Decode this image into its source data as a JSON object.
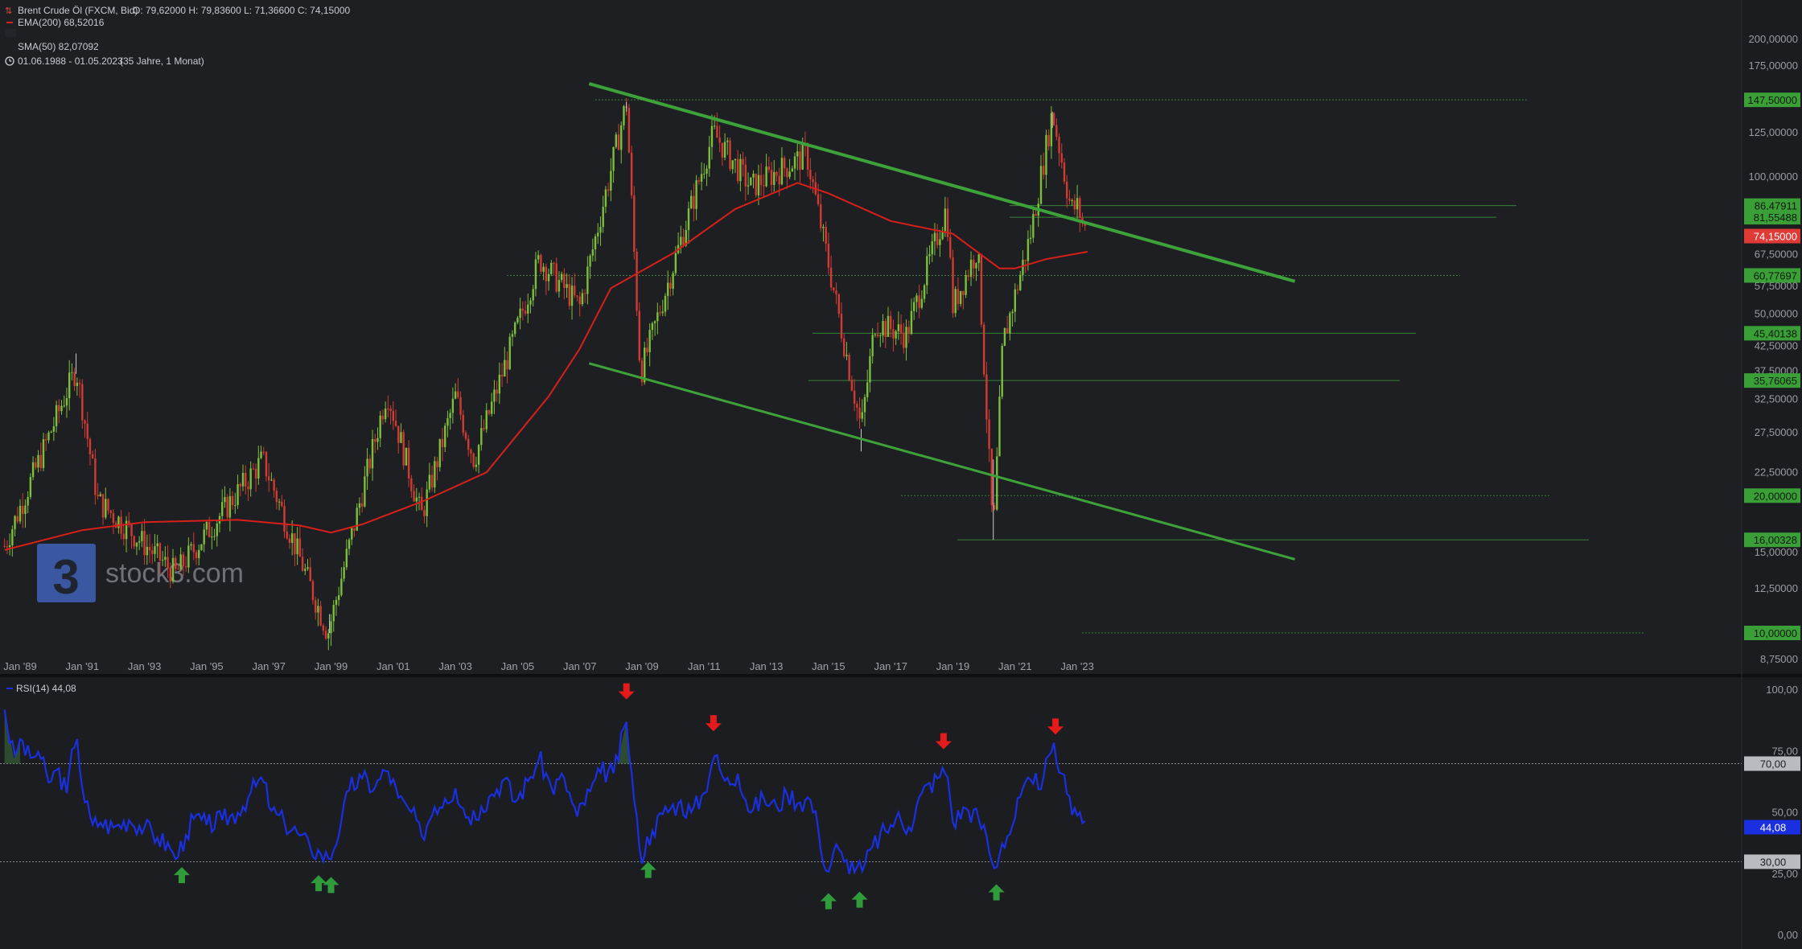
{
  "header": {
    "instrument": "Brent Crude Öl (FXCM, Bid)",
    "ohlc": "O: 79,62000  H: 79,83600  L: 71,36600  C: 74,15000",
    "ema_legend": "EMA(200)  68,52016",
    "hidden_legend": "SMA(50)  82,07092",
    "range": "01.06.1988 - 01.05.2023",
    "range_info": "(35 Jahre, 1 Monat)"
  },
  "logo": {
    "text": "stock3.com"
  },
  "colors": {
    "background": "#1e1f23",
    "panel_bg": "#1b1c20",
    "axis_bg": "#1b1c20",
    "up_candle": "#7cbf3a",
    "down_candle": "#d13b32",
    "ema": "#d8201a",
    "trendline": "#3ea23a",
    "level_line": "#3c9a3c",
    "rsi": "#1a2fe0",
    "current_price": "#e03a36",
    "level_tag": "#3a9f36",
    "arrow_up": "#2f9b3a",
    "arrow_down": "#e51b1b"
  },
  "chart_data": [
    {
      "type": "candlestick",
      "title": "Brent Crude Öl (FXCM, Bid)",
      "scale": "log",
      "x_range": [
        "Jan '89",
        "Jan '23"
      ],
      "y_ticks": [
        "200,00000",
        "175,00000",
        "125,00000",
        "100,00000",
        "67,50000",
        "57,50000",
        "50,00000",
        "42,50000",
        "37,50000",
        "32,50000",
        "27,50000",
        "22,50000",
        "15,00000",
        "12,50000",
        "8,75000"
      ],
      "x_ticks": [
        "Jan '89",
        "Jan '91",
        "Jan '93",
        "Jan '95",
        "Jan '97",
        "Jan '99",
        "Jan '01",
        "Jan '03",
        "Jan '05",
        "Jan '07",
        "Jan '09",
        "Jan '11",
        "Jan '13",
        "Jan '15",
        "Jan '17",
        "Jan '19",
        "Jan '21",
        "Jan '23"
      ],
      "key_prices": [
        {
          "date": "1988.5",
          "value": 15.5
        },
        {
          "date": "1990.8",
          "value": 38
        },
        {
          "date": "1991.5",
          "value": 19.5
        },
        {
          "date": "1994.0",
          "value": 13.5
        },
        {
          "date": "1996.8",
          "value": 24
        },
        {
          "date": "1998.9",
          "value": 10
        },
        {
          "date": "2000.8",
          "value": 34
        },
        {
          "date": "2001.9",
          "value": 18
        },
        {
          "date": "2003.0",
          "value": 33
        },
        {
          "date": "2003.6",
          "value": 24
        },
        {
          "date": "2005.7",
          "value": 66
        },
        {
          "date": "2007.0",
          "value": 52
        },
        {
          "date": "2008.5",
          "value": 146
        },
        {
          "date": "2008.95",
          "value": 37
        },
        {
          "date": "2011.3",
          "value": 125
        },
        {
          "date": "2012.5",
          "value": 95
        },
        {
          "date": "2014.3",
          "value": 112
        },
        {
          "date": "2015.2",
          "value": 55
        },
        {
          "date": "2016.05",
          "value": 28
        },
        {
          "date": "2016.5",
          "value": 48
        },
        {
          "date": "2017.5",
          "value": 45
        },
        {
          "date": "2018.8",
          "value": 86
        },
        {
          "date": "2019.0",
          "value": 52
        },
        {
          "date": "2019.8",
          "value": 70
        },
        {
          "date": "2020.3",
          "value": 16
        },
        {
          "date": "2020.6",
          "value": 43
        },
        {
          "date": "2021.5",
          "value": 75
        },
        {
          "date": "2022.2",
          "value": 139
        },
        {
          "date": "2022.8",
          "value": 85
        },
        {
          "date": "2023.0",
          "value": 86
        },
        {
          "date": "2023.33",
          "value": 74.15
        }
      ],
      "ema200": {
        "name": "EMA(200)",
        "points": [
          {
            "date": "1988.5",
            "value": 15.2
          },
          {
            "date": "1991",
            "value": 16.8
          },
          {
            "date": "1993",
            "value": 17.5
          },
          {
            "date": "1996",
            "value": 17.7
          },
          {
            "date": "1998",
            "value": 17.2
          },
          {
            "date": "1999",
            "value": 16.6
          },
          {
            "date": "2000",
            "value": 17.3
          },
          {
            "date": "2002",
            "value": 19.5
          },
          {
            "date": "2004",
            "value": 22.5
          },
          {
            "date": "2006",
            "value": 33
          },
          {
            "date": "2007",
            "value": 42
          },
          {
            "date": "2008",
            "value": 57
          },
          {
            "date": "2010",
            "value": 68
          },
          {
            "date": "2012",
            "value": 85
          },
          {
            "date": "2014",
            "value": 97
          },
          {
            "date": "2015",
            "value": 92
          },
          {
            "date": "2017",
            "value": 80
          },
          {
            "date": "2019",
            "value": 75
          },
          {
            "date": "2020.5",
            "value": 63
          },
          {
            "date": "2021",
            "value": 63
          },
          {
            "date": "2022",
            "value": 66
          },
          {
            "date": "2023.33",
            "value": 68.52
          }
        ]
      },
      "trendlines": [
        {
          "from": {
            "date": "2007.3",
            "value": 160
          },
          "to": {
            "date": "2030.0",
            "value": 59
          }
        },
        {
          "from": {
            "date": "2007.3",
            "value": 39
          },
          "to": {
            "date": "2030.0",
            "value": 14.5
          }
        }
      ],
      "levels": [
        {
          "label": "147,50000",
          "value": 147.5,
          "style": "dotted"
        },
        {
          "label": "86,47911",
          "value": 86.48,
          "style": "solid"
        },
        {
          "label": "81,55488",
          "value": 81.55,
          "style": "solid"
        },
        {
          "label": "60,77697",
          "value": 60.78,
          "style": "dotted"
        },
        {
          "label": "45,40138",
          "value": 45.4,
          "style": "solid"
        },
        {
          "label": "35,76065",
          "value": 35.76,
          "style": "solid"
        },
        {
          "label": "20,00000",
          "value": 20.0,
          "style": "dotted"
        },
        {
          "label": "16,00328",
          "value": 16.0,
          "style": "solid"
        },
        {
          "label": "10,00000",
          "value": 10.0,
          "style": "dotted"
        }
      ],
      "current_price": {
        "label": "74,15000",
        "value": 74.15
      }
    },
    {
      "type": "line",
      "series": [
        {
          "name": "RSI(14)"
        }
      ],
      "legend": "RSI(14)  44,08",
      "ylim": [
        0,
        100
      ],
      "y_ticks": [
        "100,00",
        "75,00",
        "50,00",
        "25,00",
        "0,00"
      ],
      "levels": [
        {
          "label": "70,00",
          "value": 70
        },
        {
          "label": "30,00",
          "value": 30
        }
      ],
      "current": {
        "label": "44,08",
        "value": 44.08
      },
      "points": [
        {
          "date": "1988.5",
          "value": 92
        },
        {
          "date": "1988.8",
          "value": 72
        },
        {
          "date": "1989.0",
          "value": 80
        },
        {
          "date": "1989.3",
          "value": 72
        },
        {
          "date": "1989.6",
          "value": 75
        },
        {
          "date": "1989.9",
          "value": 62
        },
        {
          "date": "1990.2",
          "value": 68
        },
        {
          "date": "1990.5",
          "value": 58
        },
        {
          "date": "1990.8",
          "value": 84
        },
        {
          "date": "1991.0",
          "value": 60
        },
        {
          "date": "1991.3",
          "value": 45
        },
        {
          "date": "1991.6",
          "value": 46
        },
        {
          "date": "1992.0",
          "value": 44
        },
        {
          "date": "1992.5",
          "value": 47
        },
        {
          "date": "1993.0",
          "value": 44
        },
        {
          "date": "1993.4",
          "value": 40
        },
        {
          "date": "1993.8",
          "value": 36
        },
        {
          "date": "1994.0",
          "value": 31
        },
        {
          "date": "1994.3",
          "value": 40
        },
        {
          "date": "1994.6",
          "value": 48
        },
        {
          "date": "1995.0",
          "value": 45
        },
        {
          "date": "1995.5",
          "value": 47
        },
        {
          "date": "1996.0",
          "value": 50
        },
        {
          "date": "1996.4",
          "value": 58
        },
        {
          "date": "1996.8",
          "value": 64
        },
        {
          "date": "1997.1",
          "value": 50
        },
        {
          "date": "1997.5",
          "value": 46
        },
        {
          "date": "1997.9",
          "value": 42
        },
        {
          "date": "1998.3",
          "value": 36
        },
        {
          "date": "1998.7",
          "value": 33
        },
        {
          "date": "1998.95",
          "value": 31
        },
        {
          "date": "1999.3",
          "value": 45
        },
        {
          "date": "1999.6",
          "value": 60
        },
        {
          "date": "2000.0",
          "value": 64
        },
        {
          "date": "2000.4",
          "value": 60
        },
        {
          "date": "2000.8",
          "value": 68
        },
        {
          "date": "2001.2",
          "value": 55
        },
        {
          "date": "2001.6",
          "value": 50
        },
        {
          "date": "2001.9",
          "value": 40
        },
        {
          "date": "2002.3",
          "value": 52
        },
        {
          "date": "2002.7",
          "value": 56
        },
        {
          "date": "2003.0",
          "value": 60
        },
        {
          "date": "2003.4",
          "value": 48
        },
        {
          "date": "2003.8",
          "value": 52
        },
        {
          "date": "2004.2",
          "value": 58
        },
        {
          "date": "2004.6",
          "value": 64
        },
        {
          "date": "2004.9",
          "value": 54
        },
        {
          "date": "2005.3",
          "value": 62
        },
        {
          "date": "2005.7",
          "value": 72
        },
        {
          "date": "2006.1",
          "value": 60
        },
        {
          "date": "2006.5",
          "value": 64
        },
        {
          "date": "2006.9",
          "value": 48
        },
        {
          "date": "2007.3",
          "value": 58
        },
        {
          "date": "2007.7",
          "value": 67
        },
        {
          "date": "2008.1",
          "value": 66
        },
        {
          "date": "2008.5",
          "value": 87
        },
        {
          "date": "2008.75",
          "value": 55
        },
        {
          "date": "2008.95",
          "value": 32
        },
        {
          "date": "2009.3",
          "value": 42
        },
        {
          "date": "2009.7",
          "value": 50
        },
        {
          "date": "2010.2",
          "value": 54
        },
        {
          "date": "2010.6",
          "value": 50
        },
        {
          "date": "2011.0",
          "value": 58
        },
        {
          "date": "2011.3",
          "value": 74
        },
        {
          "date": "2011.7",
          "value": 62
        },
        {
          "date": "2012.1",
          "value": 66
        },
        {
          "date": "2012.5",
          "value": 50
        },
        {
          "date": "2012.9",
          "value": 56
        },
        {
          "date": "2013.3",
          "value": 52
        },
        {
          "date": "2013.7",
          "value": 58
        },
        {
          "date": "2014.1",
          "value": 54
        },
        {
          "date": "2014.4",
          "value": 56
        },
        {
          "date": "2014.7",
          "value": 42
        },
        {
          "date": "2014.95",
          "value": 24
        },
        {
          "date": "2015.2",
          "value": 36
        },
        {
          "date": "2015.5",
          "value": 30
        },
        {
          "date": "2015.9",
          "value": 28
        },
        {
          "date": "2016.1",
          "value": 26
        },
        {
          "date": "2016.4",
          "value": 36
        },
        {
          "date": "2016.8",
          "value": 42
        },
        {
          "date": "2017.2",
          "value": 48
        },
        {
          "date": "2017.6",
          "value": 44
        },
        {
          "date": "2018.0",
          "value": 58
        },
        {
          "date": "2018.5",
          "value": 64
        },
        {
          "date": "2018.8",
          "value": 68
        },
        {
          "date": "2019.0",
          "value": 46
        },
        {
          "date": "2019.4",
          "value": 52
        },
        {
          "date": "2019.8",
          "value": 48
        },
        {
          "date": "2020.1",
          "value": 40
        },
        {
          "date": "2020.3",
          "value": 26
        },
        {
          "date": "2020.6",
          "value": 38
        },
        {
          "date": "2020.9",
          "value": 44
        },
        {
          "date": "2021.2",
          "value": 58
        },
        {
          "date": "2021.6",
          "value": 62
        },
        {
          "date": "2021.9",
          "value": 64
        },
        {
          "date": "2022.2",
          "value": 76
        },
        {
          "date": "2022.5",
          "value": 66
        },
        {
          "date": "2022.7",
          "value": 56
        },
        {
          "date": "2022.9",
          "value": 52
        },
        {
          "date": "2023.1",
          "value": 50
        },
        {
          "date": "2023.33",
          "value": 44
        }
      ],
      "signals": [
        {
          "date": "1994.2",
          "dir": "up"
        },
        {
          "date": "1998.6",
          "dir": "up"
        },
        {
          "date": "1999.0",
          "dir": "up"
        },
        {
          "date": "2008.5",
          "dir": "down"
        },
        {
          "date": "2009.2",
          "dir": "up"
        },
        {
          "date": "2011.3",
          "dir": "down"
        },
        {
          "date": "2015.0",
          "dir": "up"
        },
        {
          "date": "2016.0",
          "dir": "up"
        },
        {
          "date": "2018.7",
          "dir": "down"
        },
        {
          "date": "2020.4",
          "dir": "up"
        },
        {
          "date": "2022.3",
          "dir": "down"
        }
      ]
    }
  ]
}
